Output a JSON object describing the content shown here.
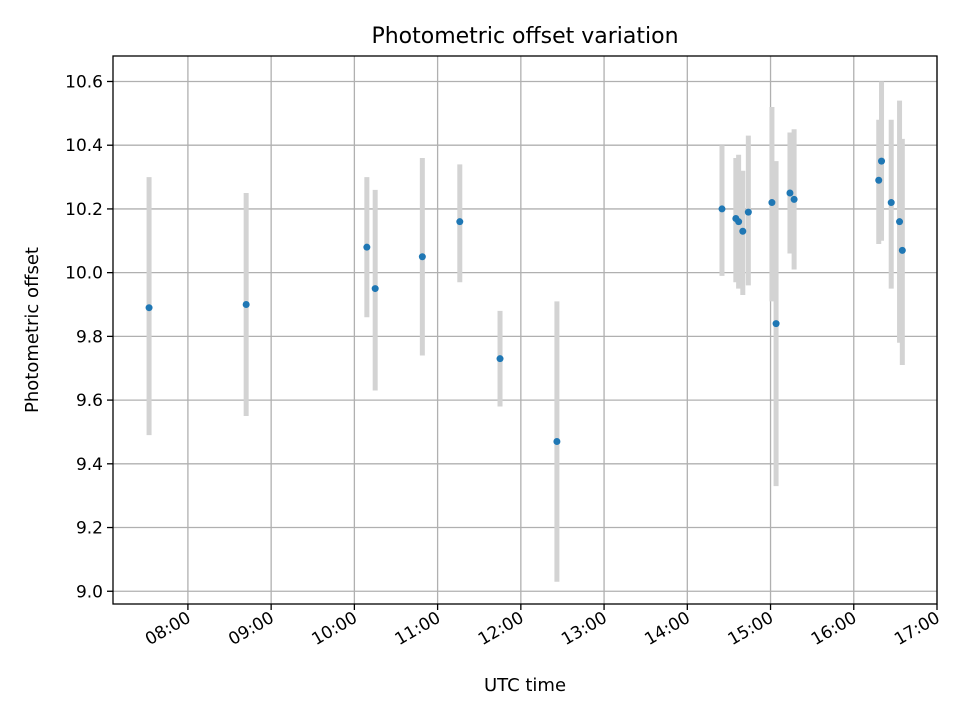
{
  "chart_data": {
    "type": "scatter",
    "title": "Photometric offset variation",
    "xlabel": "UTC time",
    "ylabel": "Photometric offset",
    "x_tick_labels": [
      "08:00",
      "09:00",
      "10:00",
      "11:00",
      "12:00",
      "13:00",
      "14:00",
      "15:00",
      "16:00",
      "17:00"
    ],
    "y_tick_labels": [
      "9.0",
      "9.2",
      "9.4",
      "9.6",
      "9.8",
      "10.0",
      "10.2",
      "10.4",
      "10.6"
    ],
    "xlim": [
      "07:06",
      "17:00"
    ],
    "ylim": [
      8.96,
      10.68
    ],
    "grid": true,
    "marker_color": "#1f77b4",
    "errorbar_color": "#d3d3d3",
    "points": [
      {
        "time": "07:32",
        "y": 9.89,
        "low": 9.49,
        "high": 10.3
      },
      {
        "time": "08:42",
        "y": 9.9,
        "low": 9.55,
        "high": 10.25
      },
      {
        "time": "10:09",
        "y": 10.08,
        "low": 9.86,
        "high": 10.3
      },
      {
        "time": "10:15",
        "y": 9.95,
        "low": 9.63,
        "high": 10.26
      },
      {
        "time": "10:49",
        "y": 10.05,
        "low": 9.74,
        "high": 10.36
      },
      {
        "time": "11:16",
        "y": 10.16,
        "low": 9.97,
        "high": 10.34
      },
      {
        "time": "11:45",
        "y": 9.73,
        "low": 9.58,
        "high": 9.88
      },
      {
        "time": "12:26",
        "y": 9.47,
        "low": 9.03,
        "high": 9.91
      },
      {
        "time": "14:25",
        "y": 10.2,
        "low": 9.99,
        "high": 10.4
      },
      {
        "time": "14:35",
        "y": 10.17,
        "low": 9.97,
        "high": 10.36
      },
      {
        "time": "14:37",
        "y": 10.16,
        "low": 9.95,
        "high": 10.37
      },
      {
        "time": "14:40",
        "y": 10.13,
        "low": 9.93,
        "high": 10.32
      },
      {
        "time": "14:44",
        "y": 10.19,
        "low": 9.96,
        "high": 10.43
      },
      {
        "time": "15:01",
        "y": 10.22,
        "low": 9.91,
        "high": 10.52
      },
      {
        "time": "15:04",
        "y": 9.84,
        "low": 9.33,
        "high": 10.35
      },
      {
        "time": "15:14",
        "y": 10.25,
        "low": 10.06,
        "high": 10.44
      },
      {
        "time": "15:17",
        "y": 10.23,
        "low": 10.01,
        "high": 10.45
      },
      {
        "time": "16:18",
        "y": 10.29,
        "low": 10.09,
        "high": 10.48
      },
      {
        "time": "16:20",
        "y": 10.35,
        "low": 10.1,
        "high": 10.6
      },
      {
        "time": "16:27",
        "y": 10.22,
        "low": 9.95,
        "high": 10.48
      },
      {
        "time": "16:33",
        "y": 10.16,
        "low": 9.78,
        "high": 10.54
      },
      {
        "time": "16:35",
        "y": 10.07,
        "low": 9.71,
        "high": 10.42
      }
    ]
  }
}
